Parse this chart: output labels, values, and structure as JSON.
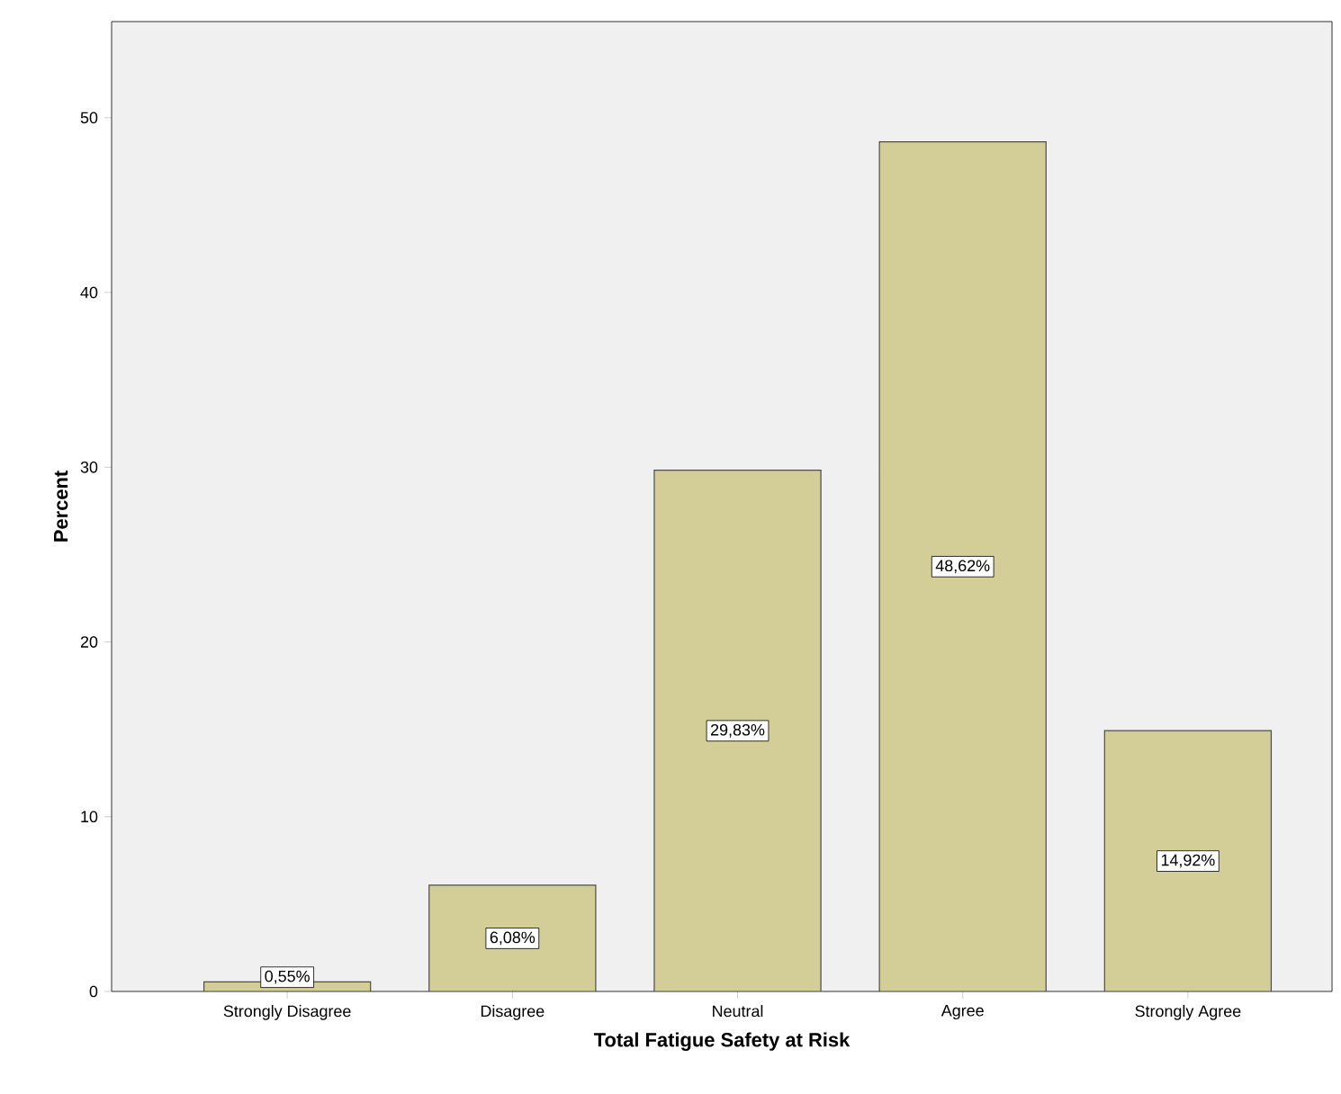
{
  "chart_data": {
    "type": "bar",
    "xlabel": "Total Fatigue Safety at Risk",
    "ylabel": "Percent",
    "categories": [
      "Strongly Disagree",
      "Disagree",
      "Neutral",
      "Agree",
      "Strongly Agree"
    ],
    "values": [
      0.55,
      6.08,
      29.83,
      48.62,
      14.92
    ],
    "value_labels": [
      "0,55%",
      "6,08%",
      "29,83%",
      "48,62%",
      "14,92%"
    ],
    "color": "#d3ce97",
    "ylim": [
      0,
      55.5
    ],
    "yticks": [
      0,
      10,
      20,
      30,
      40,
      50
    ]
  }
}
